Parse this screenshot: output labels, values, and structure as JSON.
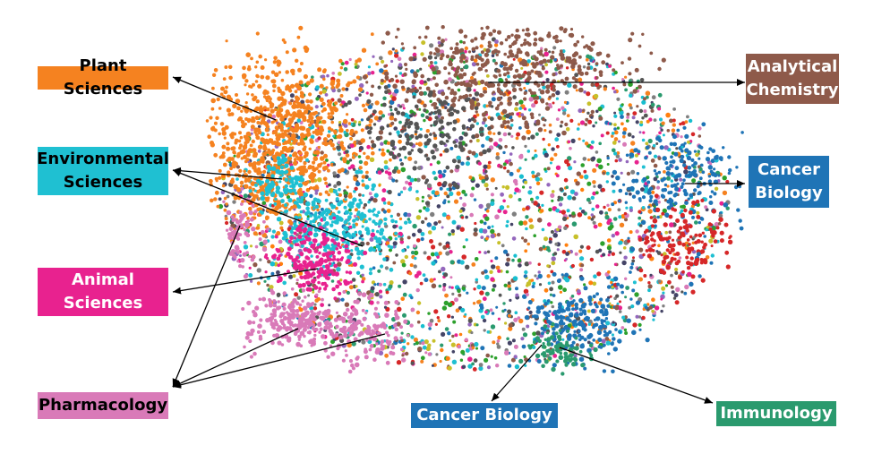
{
  "labels": {
    "plant_sciences": {
      "text": "Plant Sciences",
      "bg": "#f58220",
      "fg": "#000000"
    },
    "environmental_sciences": {
      "text": "Environmental\nSciences",
      "bg": "#1fc0d2",
      "fg": "#000000"
    },
    "animal_sciences": {
      "text": "Animal\nSciences",
      "bg": "#e8228f",
      "fg": "#ffffff"
    },
    "pharmacology": {
      "text": "Pharmacology",
      "bg": "#d97ab8",
      "fg": "#000000"
    },
    "analytical_chemistry": {
      "text": "Analytical\nChemistry",
      "bg": "#8e5a4a",
      "fg": "#ffffff"
    },
    "cancer_biology_right": {
      "text": "Cancer\nBiology",
      "bg": "#1f74b6",
      "fg": "#ffffff"
    },
    "cancer_biology_bottom": {
      "text": "Cancer Biology",
      "bg": "#1f74b6",
      "fg": "#ffffff"
    },
    "immunology": {
      "text": "Immunology",
      "bg": "#2a9a6e",
      "fg": "#ffffff"
    }
  },
  "cluster_colors": [
    "#f58220",
    "#1fc0d2",
    "#e8228f",
    "#d97ab8",
    "#8e5a4a",
    "#1f74b6",
    "#2a9a6e",
    "#c7c02a",
    "#7f7f7f",
    "#d62728",
    "#9467bd",
    "#17becf",
    "#555555",
    "#2ca02c",
    "#ff7f0e",
    "#444466"
  ]
}
